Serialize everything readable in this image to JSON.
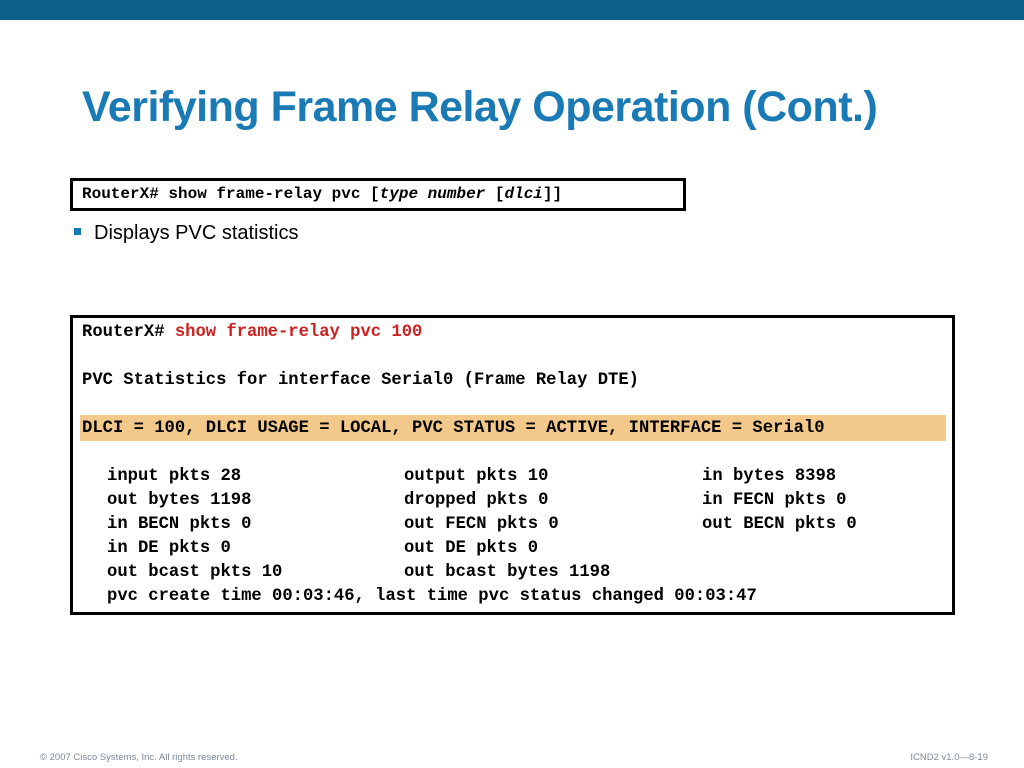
{
  "slide": {
    "title": "Verifying Frame Relay Operation (Cont.)",
    "syntax": {
      "prefix": "RouterX# show frame-relay pvc [",
      "arg1": "type number",
      "mid": " [",
      "arg2": "dlci",
      "suffix": "]]"
    },
    "bullet": "Displays PVC statistics",
    "footer_left": "© 2007 Cisco Systems, Inc. All rights reserved.",
    "footer_right": "ICND2 v1.0—8-19"
  },
  "output": {
    "prompt": "RouterX# ",
    "command": "show frame-relay pvc 100",
    "header": "PVC Statistics for interface Serial0 (Frame Relay DTE)",
    "dlci_line": "DLCI = 100, DLCI USAGE = LOCAL, PVC STATUS = ACTIVE, INTERFACE = Serial0",
    "stats": [
      [
        "input pkts 28",
        "output pkts 10",
        "in bytes 8398"
      ],
      [
        "out bytes 1198",
        "dropped pkts 0",
        "in FECN pkts 0"
      ],
      [
        "in BECN pkts 0",
        "out FECN pkts 0",
        "out BECN pkts 0"
      ],
      [
        "in DE pkts 0",
        "out DE pkts 0",
        ""
      ],
      [
        "out bcast pkts 10",
        "out bcast bytes 1198",
        ""
      ]
    ],
    "last_line": "pvc create time 00:03:46, last time pvc status changed 00:03:47"
  },
  "colors": {
    "top_bar": "#0b5f8a",
    "title": "#1a7ab5",
    "command": "#cc2222",
    "highlight": "#f3c98b"
  }
}
